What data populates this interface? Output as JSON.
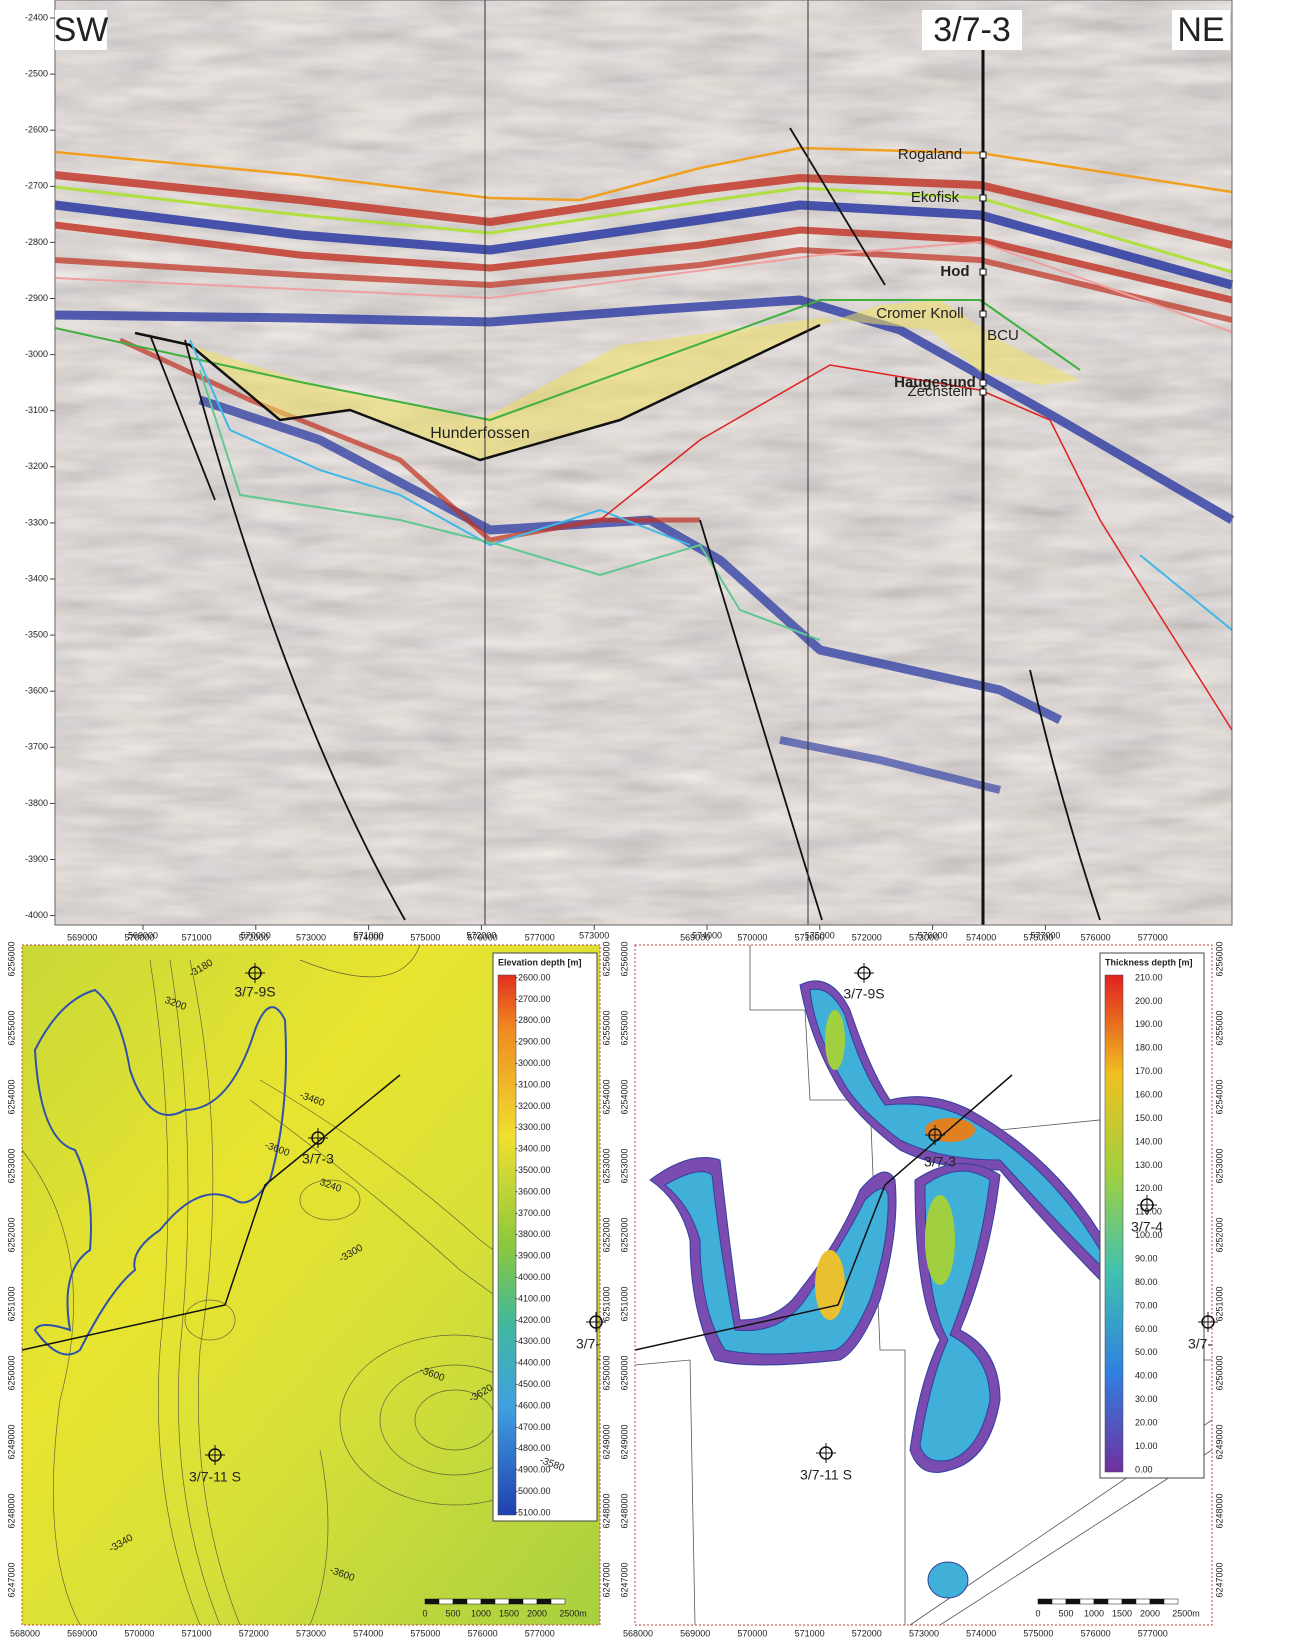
{
  "seismic": {
    "left_label": "SW",
    "right_label": "NE",
    "well": "3/7-3",
    "depth_ticks": [
      "-2400",
      "-2500",
      "-2600",
      "-2700",
      "-2800",
      "-2900",
      "-3000",
      "-3100",
      "-3200",
      "-3300",
      "-3400",
      "-3500",
      "-3600",
      "-3700",
      "-3800",
      "-3900",
      "-4000"
    ],
    "x_ticks": [
      "569000",
      "570000",
      "571000",
      "572000",
      "573000",
      "574000",
      "575000",
      "576000",
      "577000"
    ],
    "horizons": [
      "Rogaland",
      "Ekofisk",
      "Hod",
      "Cromer Knoll",
      "BCU",
      "Haugesund",
      "Zechstein"
    ],
    "unit_label": "Hunderfossen"
  },
  "elevation_map": {
    "legend_title": "Elevation depth [m]",
    "legend_values": [
      "-2600.00",
      "-2700.00",
      "-2800.00",
      "-2900.00",
      "-3000.00",
      "-3100.00",
      "-3200.00",
      "-3300.00",
      "-3400.00",
      "-3500.00",
      "-3600.00",
      "-3700.00",
      "-3800.00",
      "-3900.00",
      "-4000.00",
      "-4100.00",
      "-4200.00",
      "-4300.00",
      "-4400.00",
      "-4500.00",
      "-4600.00",
      "-4700.00",
      "-4800.00",
      "-4900.00",
      "-5000.00",
      "-5100.00"
    ],
    "x_ticks": [
      "568000",
      "569000",
      "570000",
      "571000",
      "572000",
      "573000",
      "574000",
      "575000",
      "576000",
      "577000"
    ],
    "y_ticks": [
      "6247000",
      "6248000",
      "6249000",
      "6250000",
      "6251000",
      "6252000",
      "6253000",
      "6254000",
      "6255000",
      "6256000"
    ],
    "wells": [
      "3/7-9S",
      "3/7-3",
      "3/7-11 S",
      "3/7-"
    ],
    "contour_labels": [
      "-3180",
      "3200",
      "-3460",
      "-3300",
      "3240",
      "-3600",
      "-3620",
      "-3580",
      "-3600",
      "-3340",
      "-3600"
    ],
    "scale": [
      "0",
      "500",
      "1000",
      "1500",
      "2000",
      "2500m"
    ]
  },
  "thickness_map": {
    "legend_title": "Thickness depth [m]",
    "legend_values": [
      "210.00",
      "200.00",
      "190.00",
      "180.00",
      "170.00",
      "160.00",
      "150.00",
      "140.00",
      "130.00",
      "120.00",
      "110.00",
      "100.00",
      "90.00",
      "80.00",
      "70.00",
      "60.00",
      "50.00",
      "40.00",
      "30.00",
      "20.00",
      "10.00",
      "0.00"
    ],
    "x_ticks": [
      "568000",
      "569000",
      "570000",
      "571000",
      "572000",
      "573000",
      "574000",
      "575000",
      "576000",
      "577000"
    ],
    "y_ticks": [
      "6247000",
      "6248000",
      "6249000",
      "6250000",
      "6251000",
      "6252000",
      "6253000",
      "6254000",
      "6255000",
      "6256000"
    ],
    "wells": [
      "3/7-9S",
      "3/7-3",
      "3/7-4",
      "3/7-11 S",
      "3/7-"
    ],
    "scale": [
      "0",
      "500",
      "1000",
      "1500",
      "2000",
      "2500m"
    ]
  }
}
